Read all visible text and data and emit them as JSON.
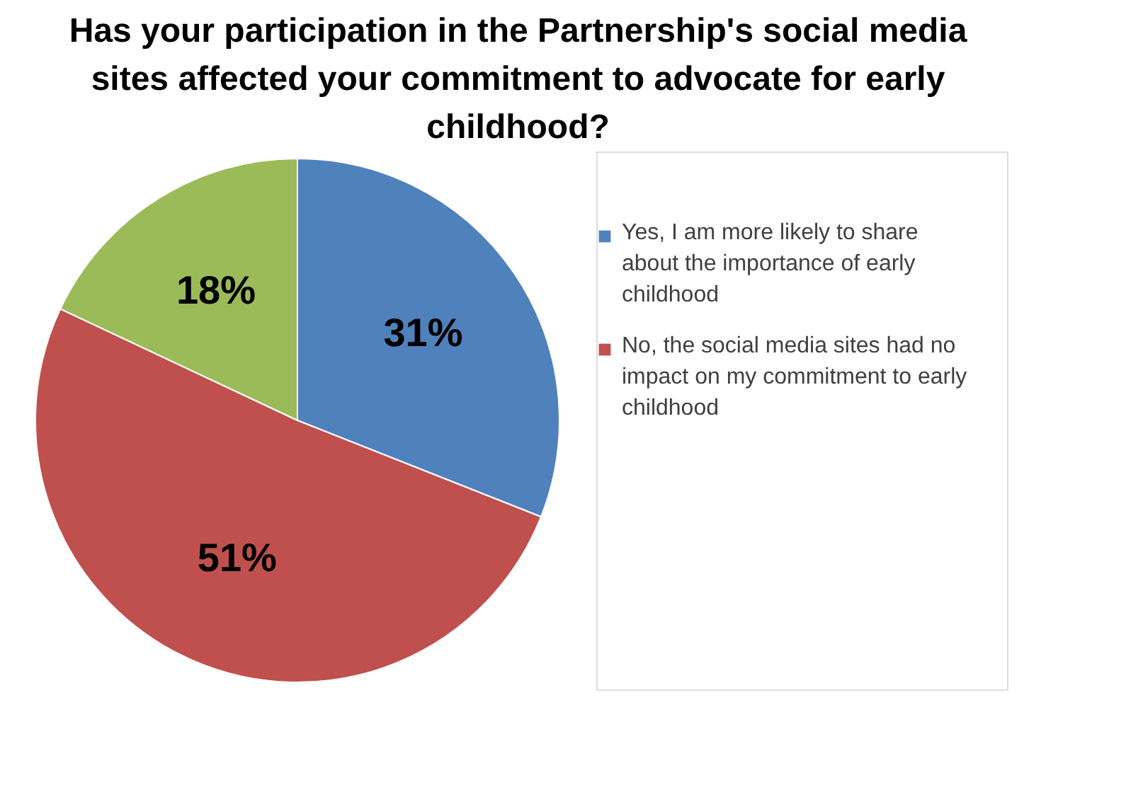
{
  "chart_data": {
    "type": "pie",
    "title": "Has your participation in the Partnership's social media sites affected your commitment to advocate for early childhood?",
    "categories": [
      "Yes, I am more likely to share about the importance of early childhood",
      "No, the social media sites had no impact on my commitment to early childhood",
      null
    ],
    "values": [
      31,
      51,
      18
    ],
    "colors": [
      "#4f81bd",
      "#c0504d",
      "#9bbb59"
    ],
    "value_labels": [
      "31%",
      "51%",
      "18%"
    ],
    "legend": "right"
  }
}
